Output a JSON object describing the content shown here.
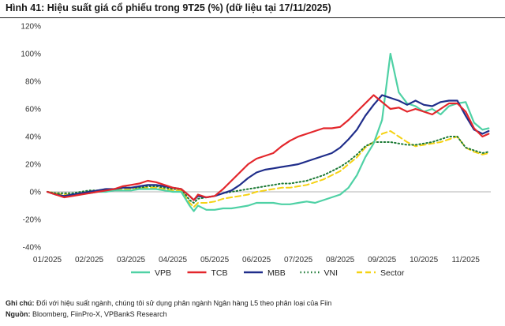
{
  "title": "Hình 41: Hiệu suất giá cổ phiếu trong 9T25 (%) (dữ liệu tại 17/11/2025)",
  "notes": {
    "note_label": "Ghi chú:",
    "note_text": "Đối với hiệu suất ngành, chúng tôi sử dụng phân ngành Ngân hàng L5 theo phân loại của Fiin",
    "source_label": "Nguồn:",
    "source_text": "Bloomberg, FiinPro-X, VPBankS Research"
  },
  "chart_data": {
    "type": "line",
    "title": "",
    "xlabel": "",
    "ylabel": "",
    "x_ticks": [
      "01/2025",
      "02/2025",
      "03/2025",
      "04/2025",
      "05/2025",
      "06/2025",
      "07/2025",
      "08/2025",
      "09/2025",
      "10/2025",
      "11/2025"
    ],
    "y_ticks": [
      "-40%",
      "-20%",
      "0%",
      "20%",
      "40%",
      "60%",
      "80%",
      "100%",
      "120%"
    ],
    "ylim": [
      -40,
      120
    ],
    "xlim": [
      0,
      10.6
    ],
    "grid": false,
    "legend_position": "bottom",
    "x": [
      0,
      0.2,
      0.4,
      0.6,
      0.8,
      1.0,
      1.2,
      1.4,
      1.6,
      1.8,
      2.0,
      2.2,
      2.4,
      2.6,
      2.8,
      3.0,
      3.2,
      3.4,
      3.5,
      3.6,
      3.8,
      4.0,
      4.2,
      4.4,
      4.6,
      4.8,
      5.0,
      5.2,
      5.4,
      5.6,
      5.8,
      6.0,
      6.2,
      6.4,
      6.6,
      6.8,
      7.0,
      7.2,
      7.4,
      7.6,
      7.8,
      8.0,
      8.2,
      8.4,
      8.6,
      8.8,
      9.0,
      9.2,
      9.4,
      9.6,
      9.8,
      10.0,
      10.2,
      10.4,
      10.55
    ],
    "series": [
      {
        "name": "VPB",
        "color": "#4fd1a5",
        "dash": "solid",
        "values": [
          0,
          -2,
          -3,
          -2,
          -1,
          -1,
          0,
          0,
          1,
          1,
          1,
          2,
          2,
          2,
          1,
          0,
          0,
          -10,
          -14,
          -10,
          -13,
          -13,
          -12,
          -12,
          -11,
          -10,
          -8,
          -8,
          -8,
          -9,
          -9,
          -8,
          -7,
          -8,
          -6,
          -4,
          -2,
          3,
          12,
          25,
          35,
          52,
          100,
          72,
          64,
          62,
          58,
          60,
          56,
          62,
          64,
          65,
          50,
          45,
          46
        ]
      },
      {
        "name": "TCB",
        "color": "#e3262b",
        "dash": "solid",
        "values": [
          0,
          -2,
          -4,
          -3,
          -2,
          -1,
          0,
          1,
          2,
          4,
          5,
          6,
          8,
          7,
          5,
          3,
          2,
          -3,
          -6,
          -2,
          -4,
          -3,
          2,
          8,
          14,
          20,
          24,
          26,
          28,
          33,
          37,
          40,
          42,
          44,
          46,
          46,
          47,
          52,
          58,
          64,
          70,
          65,
          60,
          61,
          58,
          60,
          58,
          56,
          60,
          64,
          64,
          58,
          46,
          40,
          42
        ]
      },
      {
        "name": "MBB",
        "color": "#1f2d8a",
        "dash": "solid",
        "values": [
          0,
          -2,
          -3,
          -2,
          -1,
          0,
          1,
          2,
          2,
          3,
          3,
          4,
          5,
          5,
          4,
          3,
          2,
          -3,
          -6,
          -3,
          -4,
          -3,
          -1,
          1,
          5,
          10,
          14,
          16,
          17,
          18,
          19,
          20,
          22,
          24,
          26,
          28,
          32,
          38,
          45,
          55,
          63,
          70,
          68,
          66,
          63,
          66,
          63,
          62,
          65,
          66,
          66,
          55,
          45,
          42,
          44
        ]
      },
      {
        "name": "VNI",
        "color": "#1c7a35",
        "dash": "dotted",
        "values": [
          0,
          -1,
          -1,
          -1,
          0,
          1,
          1,
          2,
          2,
          3,
          3,
          3,
          4,
          4,
          3,
          2,
          2,
          -6,
          -8,
          -5,
          -4,
          -3,
          -1,
          0,
          1,
          2,
          3,
          4,
          5,
          6,
          6,
          7,
          8,
          10,
          12,
          15,
          18,
          22,
          27,
          33,
          36,
          36,
          36,
          35,
          34,
          34,
          35,
          36,
          38,
          40,
          40,
          32,
          30,
          28,
          29
        ]
      },
      {
        "name": "Sector",
        "color": "#f5d214",
        "dash": "dashed",
        "values": [
          0,
          -1,
          -2,
          -2,
          -1,
          0,
          1,
          1,
          2,
          2,
          2,
          3,
          3,
          3,
          2,
          1,
          1,
          -8,
          -11,
          -8,
          -8,
          -7,
          -5,
          -4,
          -3,
          -2,
          0,
          1,
          2,
          3,
          3,
          4,
          5,
          7,
          9,
          12,
          15,
          20,
          25,
          32,
          36,
          42,
          44,
          40,
          36,
          33,
          34,
          35,
          36,
          38,
          40,
          32,
          29,
          27,
          28
        ]
      }
    ]
  }
}
